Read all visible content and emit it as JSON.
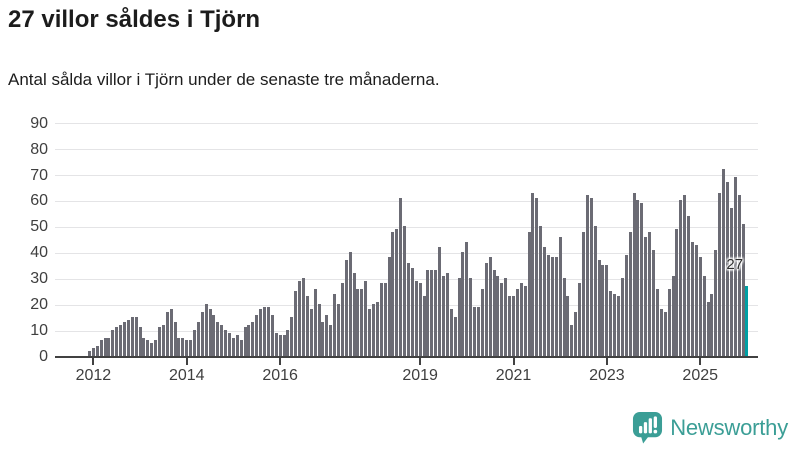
{
  "title": "27 villor såldes i Tjörn",
  "subtitle": "Antal sålda villor i Tjörn under de senaste tre månaderna.",
  "annotation_label": "27",
  "footer": {
    "brand": "Newsworthy",
    "brand_color": "#3b9e96",
    "logo_icon": "bar-chart-speech-bubble-icon"
  },
  "chart_data": {
    "type": "bar",
    "title": "27 villor såldes i Tjörn",
    "xlabel": "",
    "ylabel": "",
    "ylim": [
      0,
      90
    ],
    "grid": true,
    "legend": "none",
    "y_ticks": [
      0,
      10,
      20,
      30,
      40,
      50,
      60,
      70,
      80,
      90
    ],
    "x_ticks": [
      {
        "label": "2012",
        "index": 1
      },
      {
        "label": "2014",
        "index": 25
      },
      {
        "label": "2016",
        "index": 49
      },
      {
        "label": "2019",
        "index": 85
      },
      {
        "label": "2021",
        "index": 109
      },
      {
        "label": "2023",
        "index": 133
      },
      {
        "label": "2025",
        "index": 157
      }
    ],
    "x_description": "Months, rolling 3-month totals, Dec 2011 - late 2025",
    "bar_color": "#6b6b74",
    "values": [
      2,
      3,
      4,
      6,
      7,
      7,
      10,
      11,
      12,
      13,
      14,
      15,
      15,
      11,
      7,
      6,
      5,
      6,
      11,
      12,
      17,
      18,
      13,
      7,
      7,
      6,
      6,
      10,
      13,
      17,
      20,
      18,
      16,
      13,
      12,
      10,
      9,
      7,
      8,
      6,
      11,
      12,
      13,
      16,
      18,
      19,
      19,
      16,
      9,
      8,
      8,
      10,
      15,
      25,
      29,
      30,
      23,
      18,
      26,
      20,
      13,
      16,
      12,
      24,
      20,
      28,
      37,
      40,
      32,
      26,
      26,
      29,
      18,
      20,
      21,
      28,
      28,
      38,
      48,
      49,
      61,
      50,
      36,
      34,
      29,
      28,
      23,
      33,
      33,
      33,
      42,
      31,
      32,
      18,
      15,
      30,
      40,
      44,
      30,
      19,
      19,
      26,
      36,
      38,
      33,
      31,
      28,
      30,
      23,
      23,
      26,
      28,
      27,
      48,
      63,
      61,
      50,
      42,
      39,
      38,
      38,
      46,
      30,
      23,
      12,
      17,
      28,
      48,
      62,
      61,
      50,
      37,
      35,
      35,
      25,
      24,
      23,
      30,
      39,
      48,
      63,
      60,
      59,
      46,
      48,
      41,
      26,
      18,
      17,
      26,
      31,
      49,
      60,
      62,
      54,
      44,
      43,
      38,
      31,
      21,
      24,
      41,
      63,
      72,
      67,
      57,
      69,
      62,
      51,
      27
    ],
    "highlight": {
      "index": 169,
      "value": 27,
      "color": "#00a0a4",
      "label": "27"
    }
  }
}
